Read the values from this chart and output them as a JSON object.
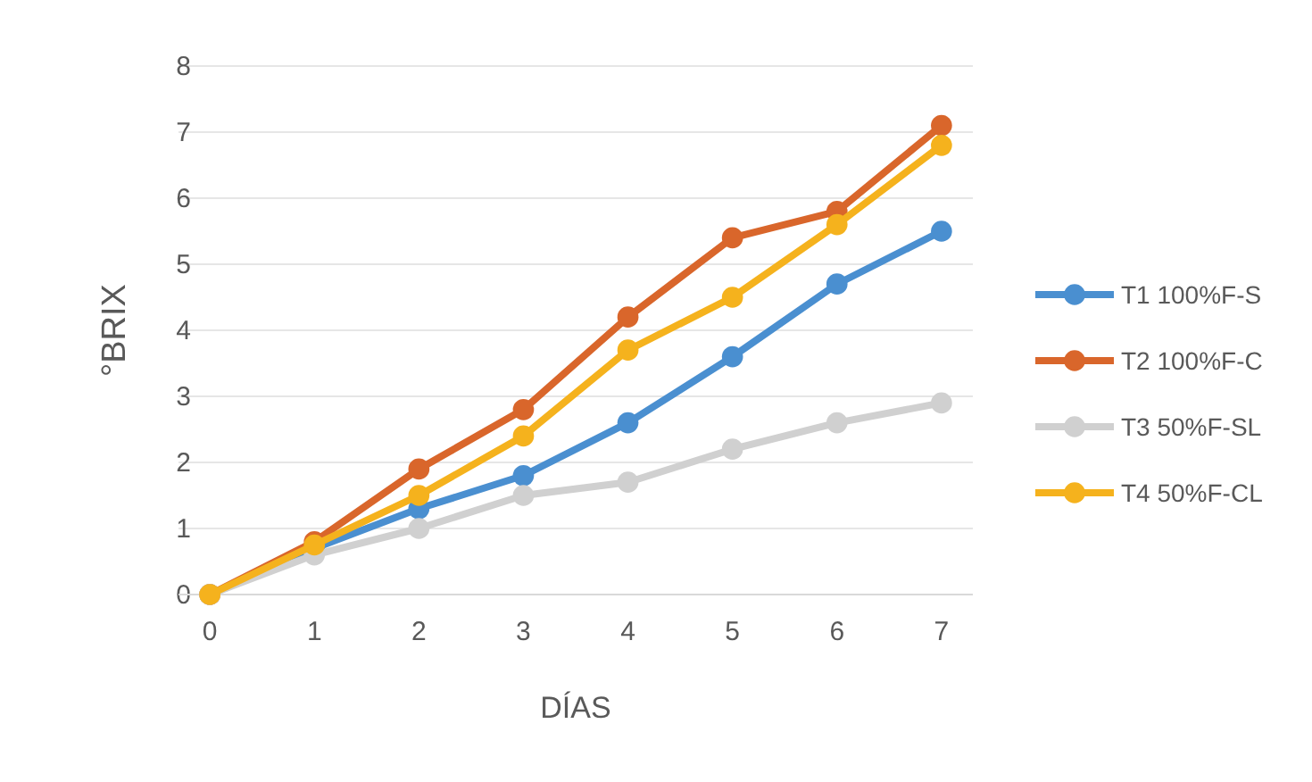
{
  "chart_data": {
    "type": "line",
    "xlabel": "DÍAS",
    "ylabel": "°BRIX",
    "x": [
      0,
      1,
      2,
      3,
      4,
      5,
      6,
      7
    ],
    "xlim": [
      -0.3,
      7.3
    ],
    "xticks": [
      0,
      1,
      2,
      3,
      4,
      5,
      6,
      7
    ],
    "ylim": [
      0,
      8
    ],
    "yticks": [
      0,
      1,
      2,
      3,
      4,
      5,
      6,
      7,
      8
    ],
    "grid": "y",
    "legend": "right",
    "marker": "circle",
    "line_style": "solid",
    "series": [
      {
        "name": "T1 100%F-S",
        "color": "#4a8fd0",
        "values": [
          0,
          0.7,
          1.3,
          1.8,
          2.6,
          3.6,
          4.7,
          5.5
        ]
      },
      {
        "name": "T2 100%F-C",
        "color": "#d9662b",
        "values": [
          0,
          0.8,
          1.9,
          2.8,
          4.2,
          5.4,
          5.8,
          7.1
        ]
      },
      {
        "name": "T3 50%F-SL",
        "color": "#d0d0d0",
        "values": [
          0,
          0.6,
          1.0,
          1.5,
          1.7,
          2.2,
          2.6,
          2.9
        ]
      },
      {
        "name": "T4 50%F-CL",
        "color": "#f5b21d",
        "values": [
          0,
          0.75,
          1.5,
          2.4,
          3.7,
          4.5,
          5.6,
          6.8
        ]
      }
    ]
  }
}
